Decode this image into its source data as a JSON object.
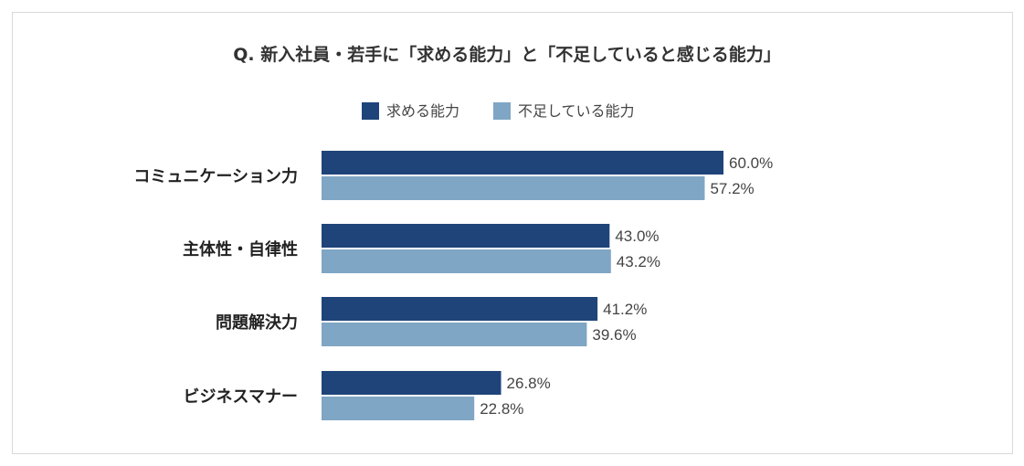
{
  "chart_data": {
    "type": "bar",
    "orientation": "horizontal",
    "title": "Q. 新入社員・若手に「求める能力」と「不足していると感じる能力」",
    "categories": [
      "コミュニケーション力",
      "主体性・自律性",
      "問題解決力",
      "ビジネスマナー"
    ],
    "series": [
      {
        "name": "求める能力",
        "color": "#1f447a",
        "values": [
          60.0,
          43.0,
          41.2,
          26.8
        ]
      },
      {
        "name": "不足している能力",
        "color": "#7fa6c4",
        "values": [
          57.2,
          43.2,
          39.6,
          22.8
        ]
      }
    ],
    "value_labels": [
      [
        "60.0%",
        "43.0%",
        "41.2%",
        "26.8%"
      ],
      [
        "57.2%",
        "43.2%",
        "39.6%",
        "22.8%"
      ]
    ],
    "xlim": [
      0,
      100
    ],
    "grid": false,
    "legend_position": "top"
  }
}
